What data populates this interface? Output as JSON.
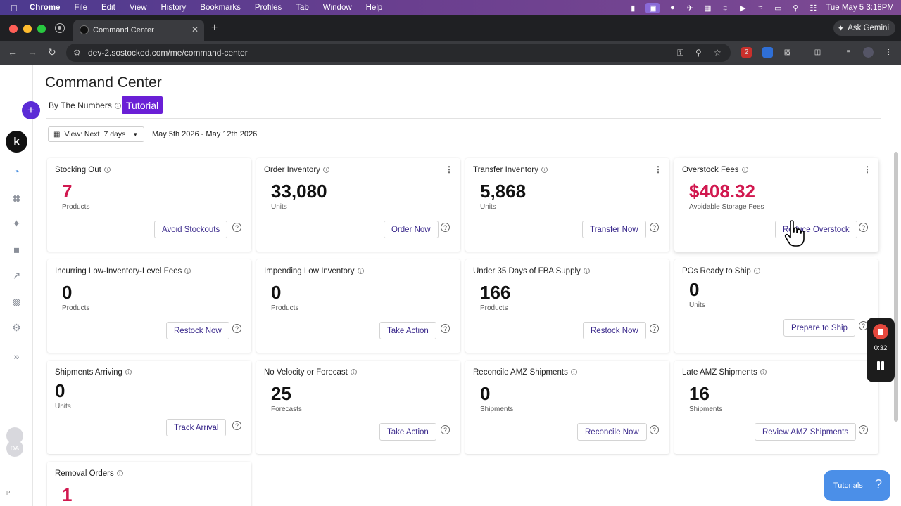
{
  "menubar": {
    "app": "Chrome",
    "items": [
      "File",
      "Edit",
      "View",
      "History",
      "Bookmarks",
      "Profiles",
      "Tab",
      "Window",
      "Help"
    ],
    "clock": "Tue May 5  3:18PM"
  },
  "browser": {
    "tab_title": "Command Center",
    "url": "dev-2.sostocked.com/me/command-center",
    "gemini_label": "Ask Gemini",
    "ext_badge": "2"
  },
  "sidebar": {
    "add_label": "+",
    "logo_letter": "k",
    "avatar_initials": "DA",
    "footer_letters": [
      "P",
      "T"
    ],
    "expand_label": "»"
  },
  "header": {
    "title": "Command Center",
    "subtitle": "By The Numbers",
    "tutorial_badge": "Tutorial",
    "view_prefix": "View: Next",
    "view_value": "7 days",
    "date_range": "May 5th 2026 - May 12th 2026"
  },
  "cards": {
    "stocking_out": {
      "title": "Stocking Out",
      "value": "7",
      "unit": "Products",
      "button": "Avoid Stockouts"
    },
    "order_inventory": {
      "title": "Order Inventory",
      "value": "33,080",
      "unit": "Units",
      "button": "Order Now"
    },
    "transfer_inventory": {
      "title": "Transfer Inventory",
      "value": "5,868",
      "unit": "Units",
      "button": "Transfer Now"
    },
    "overstock_fees": {
      "title": "Overstock Fees",
      "value": "$408.32",
      "unit": "Avoidable Storage Fees",
      "button": "Reduce Overstock"
    },
    "low_inventory_fees": {
      "title": "Incurring Low-Inventory-Level Fees",
      "value": "0",
      "unit": "Products",
      "button": "Restock Now"
    },
    "impending_low": {
      "title": "Impending Low Inventory",
      "value": "0",
      "unit": "Products",
      "button": "Take Action"
    },
    "under_35_days": {
      "title": "Under 35 Days of FBA Supply",
      "value": "166",
      "unit": "Products",
      "button": "Restock Now"
    },
    "pos_ready": {
      "title": "POs Ready to Ship",
      "value": "0",
      "unit": "Units",
      "button": "Prepare to Ship"
    },
    "shipments_arriving": {
      "title": "Shipments Arriving",
      "value": "0",
      "unit": "Units",
      "button": "Track Arrival"
    },
    "no_velocity": {
      "title": "No Velocity or Forecast",
      "value": "25",
      "unit": "Forecasts",
      "button": "Take Action"
    },
    "reconcile_amz": {
      "title": "Reconcile AMZ Shipments",
      "value": "0",
      "unit": "Shipments",
      "button": "Reconcile Now"
    },
    "late_amz": {
      "title": "Late AMZ Shipments",
      "value": "16",
      "unit": "Shipments",
      "button": "Review AMZ Shipments"
    },
    "removal_orders": {
      "title": "Removal Orders",
      "value": "1"
    }
  },
  "recorder": {
    "time": "0:32"
  },
  "tutorials_button": {
    "label": "Tutorials",
    "glyph": "?"
  },
  "colors": {
    "accent": "#6a1fd6",
    "alert_red": "#d1184f",
    "link": "#3b2a8c",
    "help_blue": "#4b8fe8"
  }
}
